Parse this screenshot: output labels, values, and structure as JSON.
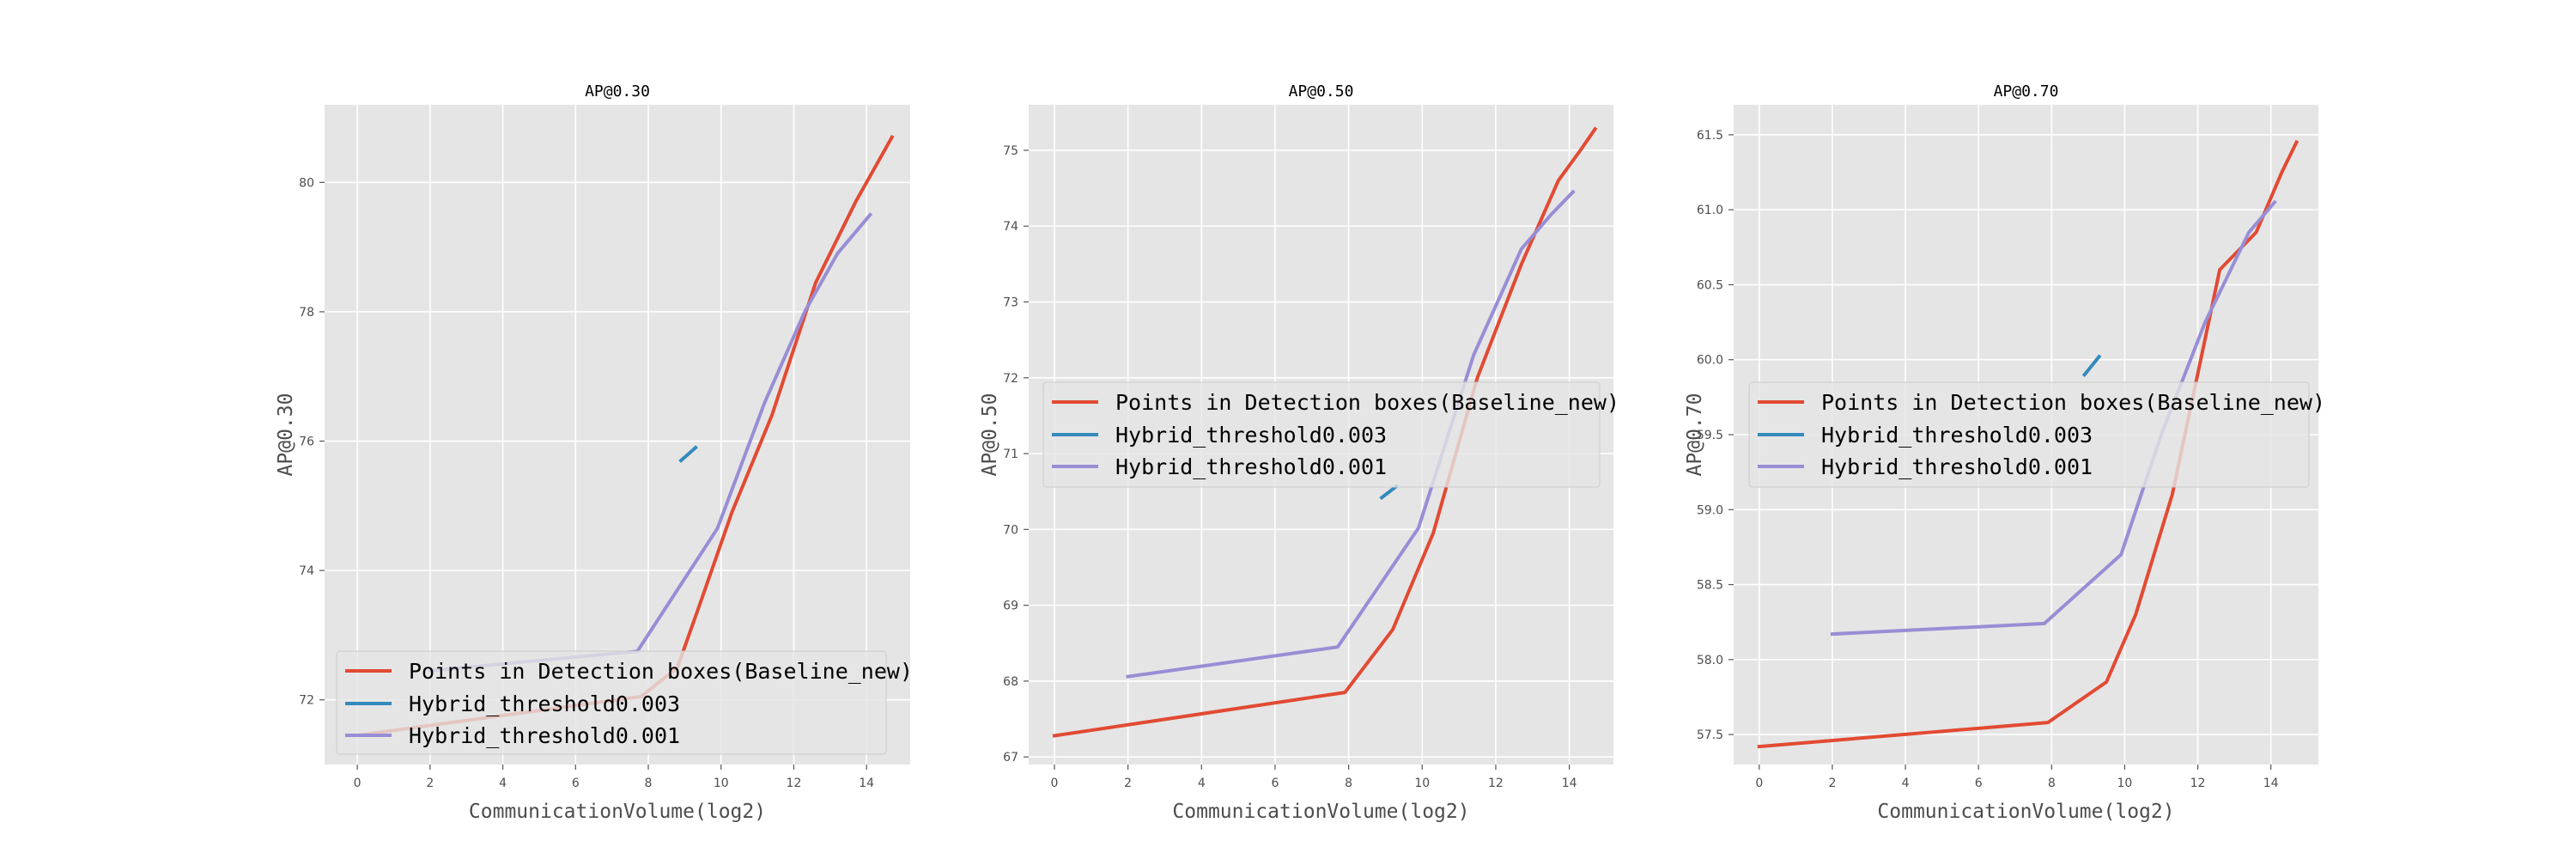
{
  "chart_data": [
    {
      "type": "line",
      "title": "AP@0.30",
      "xlabel": "CommunicationVolume(log2)",
      "ylabel": "AP@0.30",
      "xlim": [
        -0.9,
        15.2
      ],
      "ylim": [
        71.0,
        81.2
      ],
      "xticks": [
        "0",
        "2",
        "4",
        "6",
        "8",
        "10",
        "12",
        "14"
      ],
      "yticks": [
        "72",
        "74",
        "76",
        "78",
        "80"
      ],
      "grid": true,
      "legend_position": "lower-left",
      "series": [
        {
          "name": "Points in Detection boxes(Baseline_new)",
          "color": "#E24A33",
          "x": [
            0.0,
            7.8,
            8.8,
            9.4,
            10.3,
            11.4,
            12.6,
            13.7,
            14.7
          ],
          "y": [
            71.45,
            72.05,
            72.5,
            73.45,
            74.9,
            76.4,
            78.45,
            79.7,
            80.7
          ]
        },
        {
          "name": "Hybrid_threshold0.003",
          "color": "#348ABD",
          "x": [
            8.9,
            9.3
          ],
          "y": [
            75.7,
            75.9
          ]
        },
        {
          "name": "Hybrid_threshold0.001",
          "color": "#988ED5",
          "x": [
            2.0,
            7.7,
            9.9,
            11.2,
            12.3,
            13.2,
            14.1
          ],
          "y": [
            72.45,
            72.75,
            74.65,
            76.6,
            78.0,
            78.9,
            79.5
          ]
        }
      ]
    },
    {
      "type": "line",
      "title": "AP@0.50",
      "xlabel": "CommunicationVolume(log2)",
      "ylabel": "AP@0.50",
      "xlim": [
        -0.7,
        15.2
      ],
      "ylim": [
        66.9,
        75.6
      ],
      "xticks": [
        "0",
        "2",
        "4",
        "6",
        "8",
        "10",
        "12",
        "14"
      ],
      "yticks": [
        "67",
        "68",
        "69",
        "70",
        "71",
        "72",
        "73",
        "74",
        "75"
      ],
      "grid": true,
      "legend_position": "center-left",
      "series": [
        {
          "name": "Points in Detection boxes(Baseline_new)",
          "color": "#E24A33",
          "x": [
            0.0,
            7.9,
            9.2,
            10.3,
            11.5,
            12.7,
            13.7,
            14.3,
            14.7
          ],
          "y": [
            67.28,
            67.85,
            68.68,
            69.95,
            72.0,
            73.5,
            74.6,
            75.0,
            75.28
          ]
        },
        {
          "name": "Hybrid_threshold0.003",
          "color": "#348ABD",
          "x": [
            8.9,
            9.3
          ],
          "y": [
            70.42,
            70.57
          ]
        },
        {
          "name": "Hybrid_threshold0.001",
          "color": "#988ED5",
          "x": [
            2.0,
            7.7,
            9.9,
            11.4,
            12.7,
            13.5,
            14.1
          ],
          "y": [
            68.06,
            68.45,
            70.02,
            72.3,
            73.7,
            74.15,
            74.45
          ]
        }
      ]
    },
    {
      "type": "line",
      "title": "AP@0.70",
      "xlabel": "CommunicationVolume(log2)",
      "ylabel": "AP@0.70",
      "xlim": [
        -0.7,
        15.3
      ],
      "ylim": [
        57.3,
        61.7
      ],
      "xticks": [
        "0",
        "2",
        "4",
        "6",
        "8",
        "10",
        "12",
        "14"
      ],
      "yticks": [
        "57.5",
        "58.0",
        "58.5",
        "59.0",
        "59.5",
        "60.0",
        "60.5",
        "61.0",
        "61.5"
      ],
      "grid": true,
      "legend_position": "center-left",
      "series": [
        {
          "name": "Points in Detection boxes(Baseline_new)",
          "color": "#E24A33",
          "x": [
            0.0,
            7.9,
            9.5,
            10.3,
            11.3,
            12.6,
            13.6,
            14.3,
            14.7
          ],
          "y": [
            57.42,
            57.58,
            57.85,
            58.3,
            59.1,
            60.6,
            60.85,
            61.25,
            61.45
          ]
        },
        {
          "name": "Hybrid_threshold0.003",
          "color": "#348ABD",
          "x": [
            8.9,
            9.3
          ],
          "y": [
            59.9,
            60.02
          ]
        },
        {
          "name": "Hybrid_threshold0.001",
          "color": "#988ED5",
          "x": [
            2.0,
            7.8,
            9.9,
            11.0,
            12.2,
            13.4,
            14.1
          ],
          "y": [
            58.17,
            58.24,
            58.7,
            59.5,
            60.25,
            60.85,
            61.05
          ]
        }
      ]
    }
  ]
}
